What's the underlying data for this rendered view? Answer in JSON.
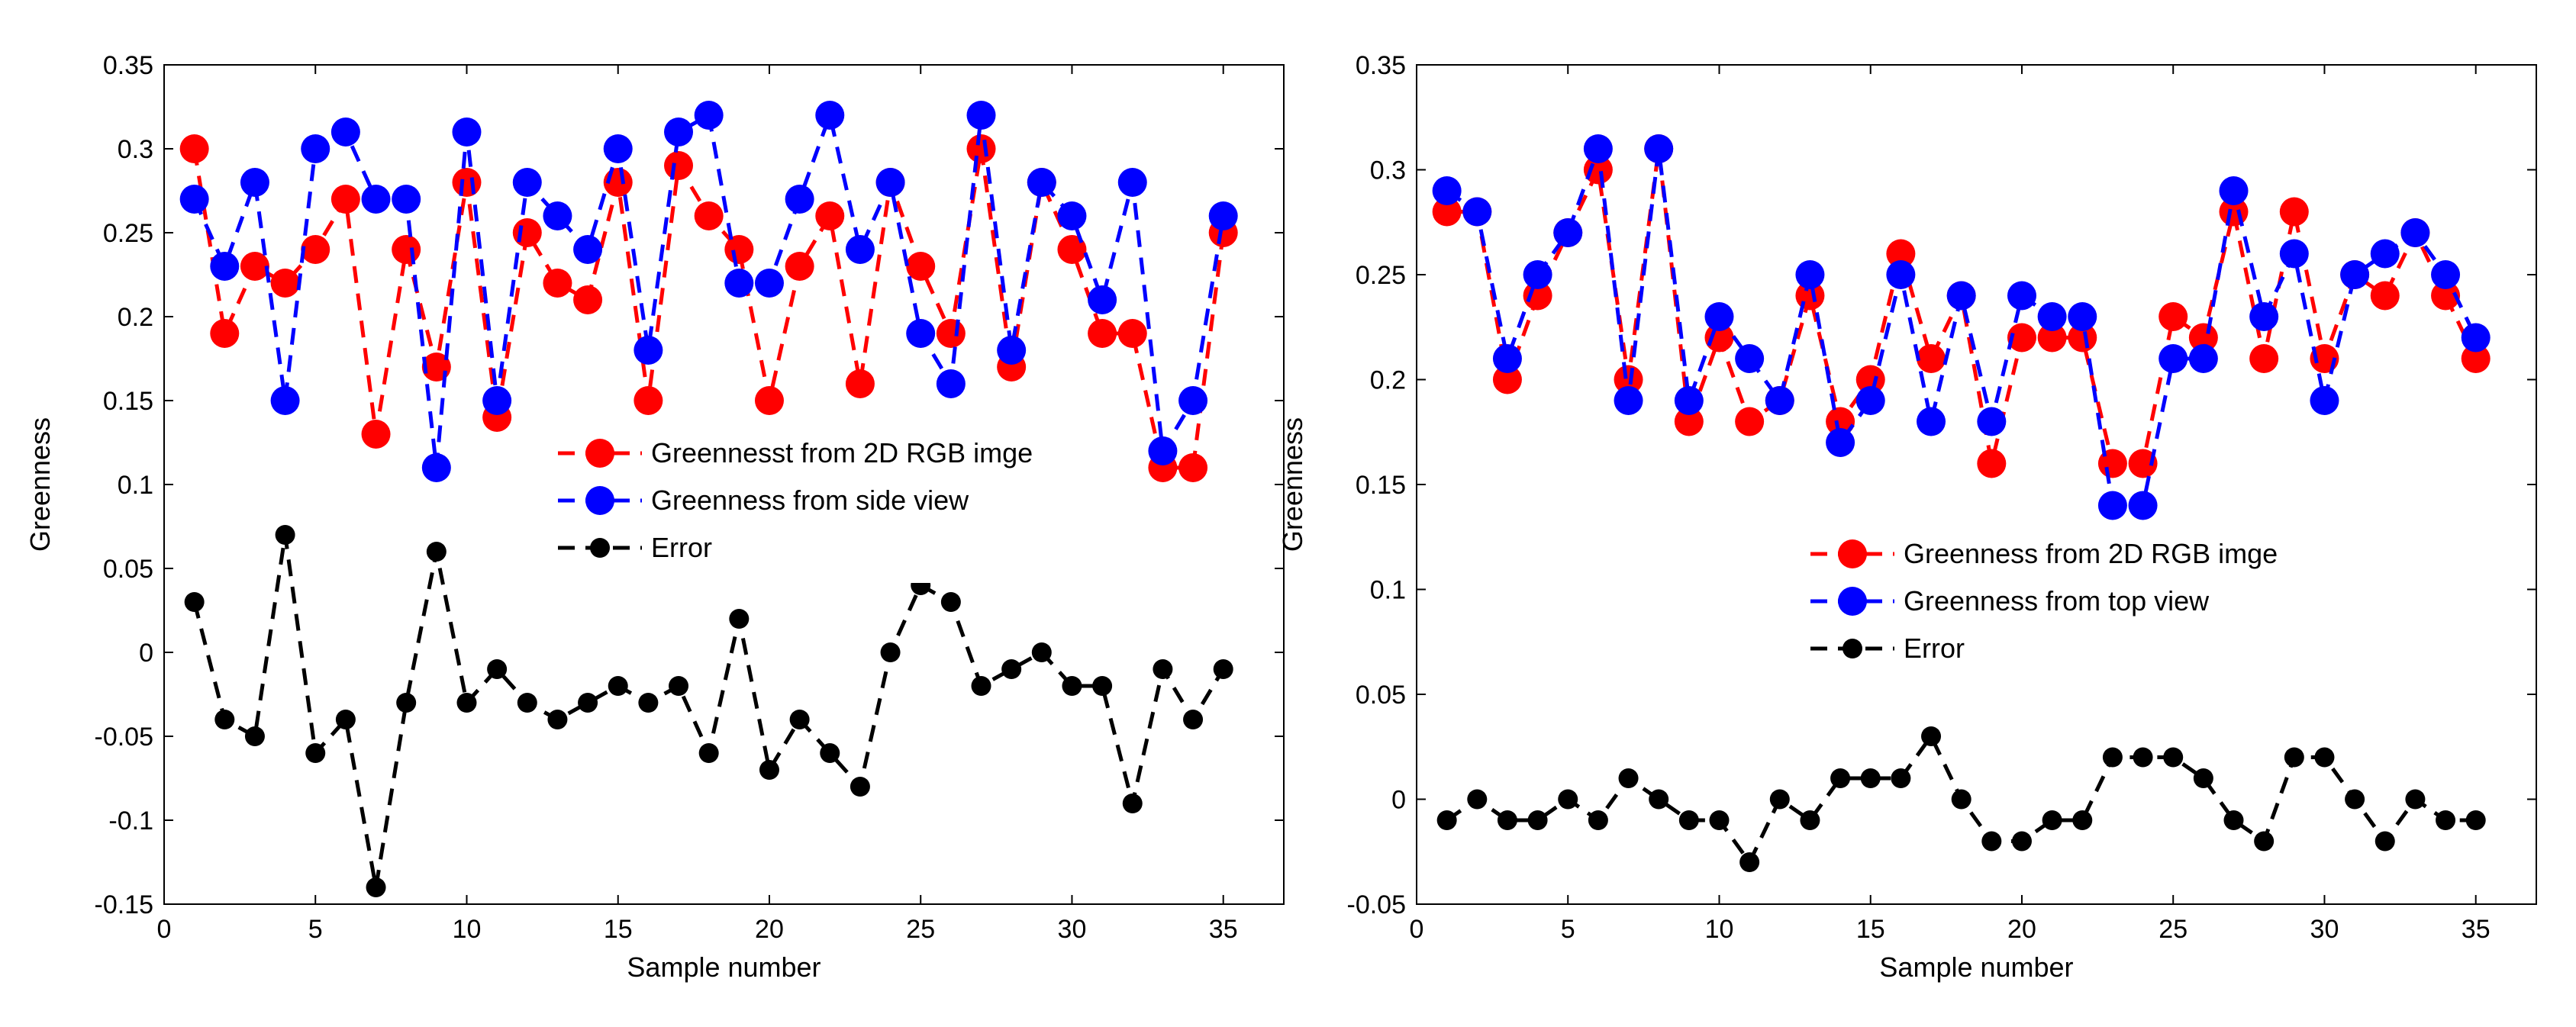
{
  "chart_data": [
    {
      "type": "line",
      "xlabel": "Sample number",
      "ylabel": "Greenness",
      "xlim": [
        0,
        37
      ],
      "ylim": [
        -0.15,
        0.35
      ],
      "xticks": [
        "0",
        "5",
        "10",
        "15",
        "20",
        "25",
        "30",
        "35"
      ],
      "yticks": [
        "-0.15",
        "-0.1",
        "-0.05",
        "0",
        "0.05",
        "0.1",
        "0.15",
        "0.2",
        "0.25",
        "0.3",
        "0.35"
      ],
      "grid": false,
      "legend_position": "center-right",
      "x": [
        1,
        2,
        3,
        4,
        5,
        6,
        7,
        8,
        9,
        10,
        11,
        12,
        13,
        14,
        15,
        16,
        17,
        18,
        19,
        20,
        21,
        22,
        23,
        24,
        25,
        26,
        27,
        28,
        29,
        30,
        31,
        32,
        33,
        34,
        35
      ],
      "series": [
        {
          "name": "Greennesst from 2D RGB imge",
          "color": "#ff0000",
          "values": [
            0.3,
            0.19,
            0.23,
            0.22,
            0.24,
            0.27,
            0.13,
            0.24,
            0.17,
            0.28,
            0.14,
            0.25,
            0.22,
            0.21,
            0.28,
            0.15,
            0.29,
            0.26,
            0.24,
            0.15,
            0.23,
            0.26,
            0.16,
            0.28,
            0.23,
            0.19,
            0.3,
            0.17,
            0.28,
            0.24,
            0.19,
            0.19,
            0.11,
            0.11,
            0.25
          ]
        },
        {
          "name": "Greenness from side view",
          "color": "#0000ff",
          "values": [
            0.27,
            0.23,
            0.28,
            0.15,
            0.3,
            0.31,
            0.27,
            0.27,
            0.11,
            0.31,
            0.15,
            0.28,
            0.26,
            0.24,
            0.3,
            0.18,
            0.31,
            0.32,
            0.22,
            0.22,
            0.27,
            0.32,
            0.24,
            0.28,
            0.19,
            0.16,
            0.32,
            0.18,
            0.28,
            0.26,
            0.21,
            0.28,
            0.12,
            0.15,
            0.26
          ]
        },
        {
          "name": "Error",
          "color": "#000000",
          "values": [
            0.03,
            -0.04,
            -0.05,
            0.07,
            -0.06,
            -0.04,
            -0.14,
            -0.03,
            0.06,
            -0.03,
            -0.01,
            -0.03,
            -0.04,
            -0.03,
            -0.02,
            -0.03,
            -0.02,
            -0.06,
            0.02,
            -0.07,
            -0.04,
            -0.06,
            -0.08,
            0.0,
            0.04,
            0.03,
            -0.02,
            -0.01,
            0.0,
            -0.02,
            -0.02,
            -0.09,
            -0.01,
            -0.04,
            -0.01
          ]
        }
      ]
    },
    {
      "type": "line",
      "xlabel": "Sample number",
      "ylabel": "Greenness",
      "xlim": [
        0,
        37
      ],
      "ylim": [
        -0.05,
        0.35
      ],
      "xticks": [
        "0",
        "5",
        "10",
        "15",
        "20",
        "25",
        "30",
        "35"
      ],
      "yticks": [
        "-0.05",
        "0",
        "0.05",
        "0.1",
        "0.15",
        "0.2",
        "0.25",
        "0.3",
        "0.35"
      ],
      "grid": false,
      "legend_position": "center-right",
      "x": [
        1,
        2,
        3,
        4,
        5,
        6,
        7,
        8,
        9,
        10,
        11,
        12,
        13,
        14,
        15,
        16,
        17,
        18,
        19,
        20,
        21,
        22,
        23,
        24,
        25,
        26,
        27,
        28,
        29,
        30,
        31,
        32,
        33,
        34,
        35
      ],
      "series": [
        {
          "name": "Greenness from 2D RGB imge",
          "color": "#ff0000",
          "values": [
            0.28,
            0.28,
            0.2,
            0.24,
            0.27,
            0.3,
            0.2,
            0.31,
            0.18,
            0.22,
            0.18,
            0.19,
            0.24,
            0.18,
            0.2,
            0.26,
            0.21,
            0.24,
            0.16,
            0.22,
            0.22,
            0.22,
            0.16,
            0.16,
            0.23,
            0.22,
            0.28,
            0.21,
            0.28,
            0.21,
            0.25,
            0.24,
            0.27,
            0.24,
            0.21
          ]
        },
        {
          "name": "Greenness from top view",
          "color": "#0000ff",
          "values": [
            0.29,
            0.28,
            0.21,
            0.25,
            0.27,
            0.31,
            0.19,
            0.31,
            0.19,
            0.23,
            0.21,
            0.19,
            0.25,
            0.17,
            0.19,
            0.25,
            0.18,
            0.24,
            0.18,
            0.24,
            0.23,
            0.23,
            0.14,
            0.14,
            0.21,
            0.21,
            0.29,
            0.23,
            0.26,
            0.19,
            0.25,
            0.26,
            0.27,
            0.25,
            0.22
          ]
        },
        {
          "name": "Error",
          "color": "#000000",
          "values": [
            -0.01,
            0.0,
            -0.01,
            -0.01,
            0.0,
            -0.01,
            0.01,
            0.0,
            -0.01,
            -0.01,
            -0.03,
            0.0,
            -0.01,
            0.01,
            0.01,
            0.01,
            0.03,
            0.0,
            -0.02,
            -0.02,
            -0.01,
            -0.01,
            0.02,
            0.02,
            0.02,
            0.01,
            -0.01,
            -0.02,
            0.02,
            0.02,
            0.0,
            -0.02,
            0.0,
            -0.01,
            -0.01
          ]
        }
      ]
    }
  ]
}
